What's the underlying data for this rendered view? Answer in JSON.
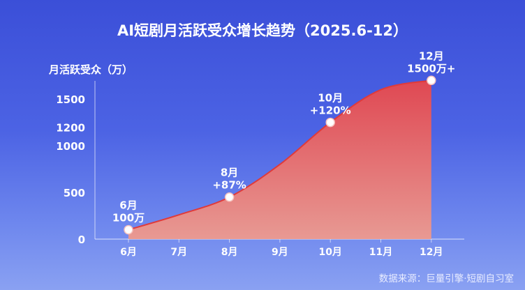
{
  "title": "AI短剧月活跃受众增长趋势（2025.6-12）",
  "ylabel": "月活跃受众（万）",
  "source": "数据来源：巨量引擎·短剧自习室",
  "colors": {
    "background_top": "#3b4fd8",
    "background_bottom": "#8aa1f2",
    "area_top": "#e8474b",
    "area_bottom": "#ee9a8e",
    "line": "#e03a3a",
    "point": "#ffffff",
    "text": "#ffffff"
  },
  "chart_data": {
    "type": "area",
    "title": "AI短剧月活跃受众增长趋势（2025.6-12）",
    "xlabel": "",
    "ylabel": "月活跃受众（万）",
    "categories": [
      "6月",
      "7月",
      "8月",
      "9月",
      "10月",
      "11月",
      "12月"
    ],
    "yticks": [
      0,
      500,
      1000,
      1200,
      1500
    ],
    "ylim": [
      0,
      1650
    ],
    "grid": false,
    "legend": "none",
    "series": [
      {
        "values": [
          100,
          260,
          450,
          800,
          1250,
          1600,
          1700
        ]
      }
    ],
    "annotations": [
      {
        "index": 0,
        "value": 100,
        "lines": [
          "6月",
          "100万"
        ]
      },
      {
        "index": 2,
        "value": 450,
        "lines": [
          "8月",
          "+87%"
        ]
      },
      {
        "index": 4,
        "value": 1250,
        "lines": [
          "10月",
          "+120%"
        ]
      },
      {
        "index": 6,
        "value": 1700,
        "lines": [
          "12月",
          "1500万+"
        ]
      }
    ]
  }
}
